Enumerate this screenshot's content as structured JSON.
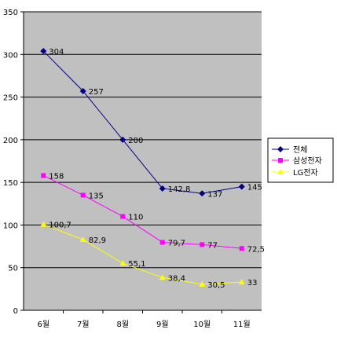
{
  "chart_data": {
    "type": "line",
    "categories": [
      "6월",
      "7월",
      "8월",
      "9월",
      "10월",
      "11월"
    ],
    "ylim": [
      0,
      350
    ],
    "yticks": [
      0,
      50,
      100,
      150,
      200,
      250,
      300,
      350
    ],
    "grid": true,
    "legend_position": "right",
    "plot_background": "#c0c0c0",
    "series": [
      {
        "name": "전체",
        "values": [
          304,
          257,
          200,
          142.8,
          137,
          145
        ],
        "labels": [
          "304",
          "257",
          "200",
          "142,8",
          "137",
          "145"
        ],
        "color": "#000080",
        "marker": "diamond"
      },
      {
        "name": "삼성전자",
        "values": [
          158,
          135,
          110,
          79.7,
          77,
          72.5
        ],
        "labels": [
          "158",
          "135",
          "110",
          "79,7",
          "77",
          "72,5"
        ],
        "color": "#ff00ff",
        "marker": "square"
      },
      {
        "name": "LG전자",
        "values": [
          100.7,
          82.9,
          55.1,
          38.4,
          30.5,
          33
        ],
        "labels": [
          "100,7",
          "82,9",
          "55,1",
          "38,4",
          "30,5",
          "33"
        ],
        "color": "#ffff00",
        "marker": "triangle"
      }
    ]
  }
}
